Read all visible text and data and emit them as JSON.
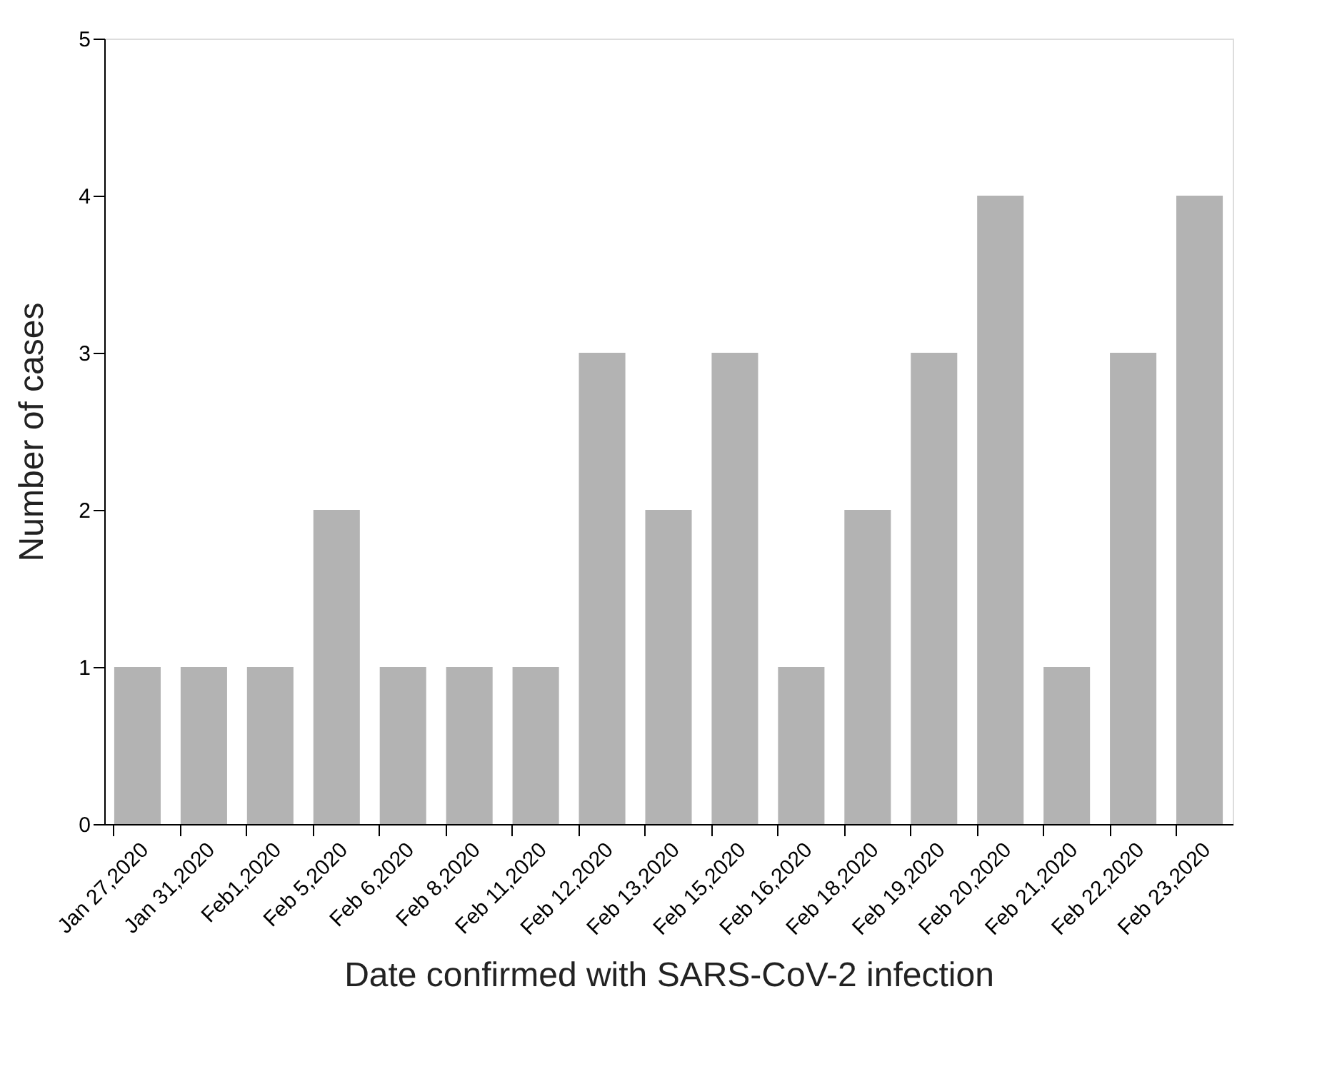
{
  "chart_data": {
    "type": "bar",
    "xlabel": "Date confirmed with SARS-CoV-2 infection",
    "ylabel": "Number of cases",
    "categories": [
      "Jan 27,2020",
      "Jan 31,2020",
      "Feb1,2020",
      "Feb 5,2020",
      "Feb 6,2020",
      "Feb 8,2020",
      "Feb 11,2020",
      "Feb 12,2020",
      "Feb 13,2020",
      "Feb 15,2020",
      "Feb 16,2020",
      "Feb 18,2020",
      "Feb 19,2020",
      "Feb 20,2020",
      "Feb 21,2020",
      "Feb 22,2020",
      "Feb 23,2020"
    ],
    "values": [
      1,
      1,
      1,
      2,
      1,
      1,
      1,
      3,
      2,
      3,
      1,
      2,
      3,
      4,
      1,
      3,
      4
    ],
    "color": "#b3b3b3",
    "ylim": [
      0,
      5
    ],
    "yticks": [
      0,
      1,
      2,
      3,
      4,
      5
    ],
    "grid": false
  }
}
